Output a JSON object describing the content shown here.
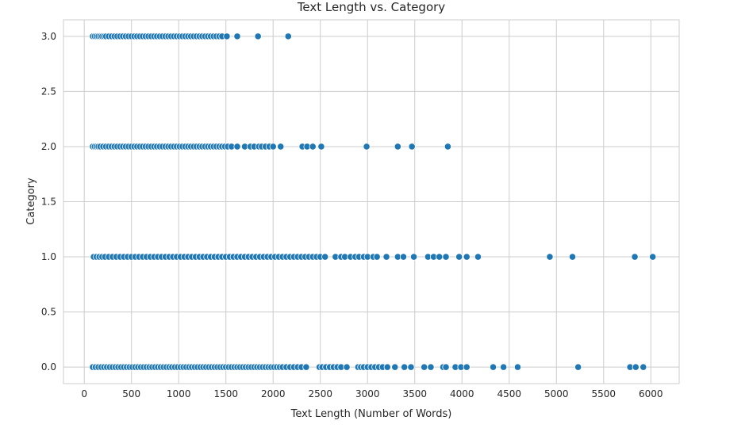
{
  "chart_data": {
    "type": "scatter",
    "title": "Text Length vs. Category",
    "xlabel": "Text Length (Number of Words)",
    "ylabel": "Category",
    "xlim": [
      -220,
      6300
    ],
    "ylim": [
      -0.15,
      3.15
    ],
    "x_ticks": [
      "0",
      "500",
      "1000",
      "1500",
      "2000",
      "2500",
      "3000",
      "3500",
      "4000",
      "4500",
      "5000",
      "5500",
      "6000"
    ],
    "y_ticks": [
      "0.0",
      "0.5",
      "1.0",
      "1.5",
      "2.0",
      "2.5",
      "3.0"
    ],
    "grid": true,
    "point_color": "#1f77b4",
    "series": [
      {
        "category": 3,
        "x": [
          90,
          110,
          130,
          150,
          170,
          190,
          210,
          230,
          260,
          290,
          320,
          350,
          380,
          410,
          440,
          470,
          500,
          530,
          560,
          590,
          620,
          650,
          680,
          710,
          740,
          770,
          800,
          830,
          860,
          890,
          920,
          950,
          980,
          1010,
          1040,
          1070,
          1100,
          1130,
          1160,
          1190,
          1220,
          1250,
          1280,
          1310,
          1340,
          1370,
          1400,
          1430,
          1460,
          1510,
          1620,
          1840,
          2160
        ]
      },
      {
        "category": 2,
        "x": [
          90,
          110,
          130,
          150,
          170,
          200,
          230,
          260,
          290,
          320,
          350,
          380,
          410,
          440,
          470,
          500,
          530,
          560,
          590,
          620,
          650,
          680,
          710,
          740,
          770,
          800,
          830,
          860,
          890,
          920,
          950,
          980,
          1010,
          1040,
          1070,
          1100,
          1130,
          1160,
          1190,
          1220,
          1250,
          1280,
          1310,
          1340,
          1370,
          1400,
          1430,
          1460,
          1490,
          1520,
          1560,
          1620,
          1700,
          1760,
          1800,
          1850,
          1880,
          1920,
          1960,
          2000,
          2080,
          2310,
          2360,
          2420,
          2510,
          2990,
          3320,
          3470,
          3850
        ]
      },
      {
        "category": 1,
        "x": [
          100,
          130,
          160,
          190,
          220,
          260,
          300,
          340,
          380,
          420,
          460,
          500,
          540,
          580,
          620,
          660,
          700,
          740,
          780,
          820,
          860,
          900,
          940,
          980,
          1020,
          1060,
          1100,
          1140,
          1180,
          1220,
          1260,
          1300,
          1340,
          1380,
          1420,
          1460,
          1500,
          1540,
          1580,
          1620,
          1660,
          1700,
          1740,
          1780,
          1820,
          1860,
          1900,
          1940,
          1980,
          2020,
          2060,
          2100,
          2140,
          2180,
          2220,
          2260,
          2300,
          2340,
          2380,
          2420,
          2460,
          2500,
          2550,
          2660,
          2720,
          2760,
          2820,
          2870,
          2910,
          2960,
          3000,
          3060,
          3100,
          3200,
          3320,
          3380,
          3490,
          3640,
          3700,
          3760,
          3830,
          3970,
          4050,
          4170,
          4930,
          5170,
          5830,
          6020
        ]
      },
      {
        "category": 0,
        "x": [
          90,
          120,
          150,
          180,
          210,
          240,
          270,
          300,
          330,
          360,
          390,
          420,
          450,
          480,
          510,
          540,
          570,
          600,
          630,
          660,
          690,
          720,
          750,
          780,
          810,
          840,
          870,
          900,
          930,
          960,
          990,
          1020,
          1050,
          1080,
          1110,
          1140,
          1170,
          1200,
          1230,
          1260,
          1290,
          1320,
          1350,
          1380,
          1410,
          1440,
          1470,
          1500,
          1530,
          1560,
          1590,
          1620,
          1650,
          1680,
          1710,
          1740,
          1770,
          1800,
          1830,
          1860,
          1890,
          1920,
          1950,
          1980,
          2010,
          2040,
          2070,
          2100,
          2140,
          2180,
          2220,
          2260,
          2300,
          2350,
          2490,
          2520,
          2560,
          2600,
          2640,
          2680,
          2720,
          2780,
          2900,
          2930,
          2960,
          3000,
          3040,
          3080,
          3120,
          3160,
          3210,
          3290,
          3390,
          3460,
          3600,
          3670,
          3800,
          3830,
          3930,
          3990,
          4050,
          4330,
          4440,
          4590,
          5230,
          5780,
          5840,
          5920
        ]
      }
    ]
  }
}
